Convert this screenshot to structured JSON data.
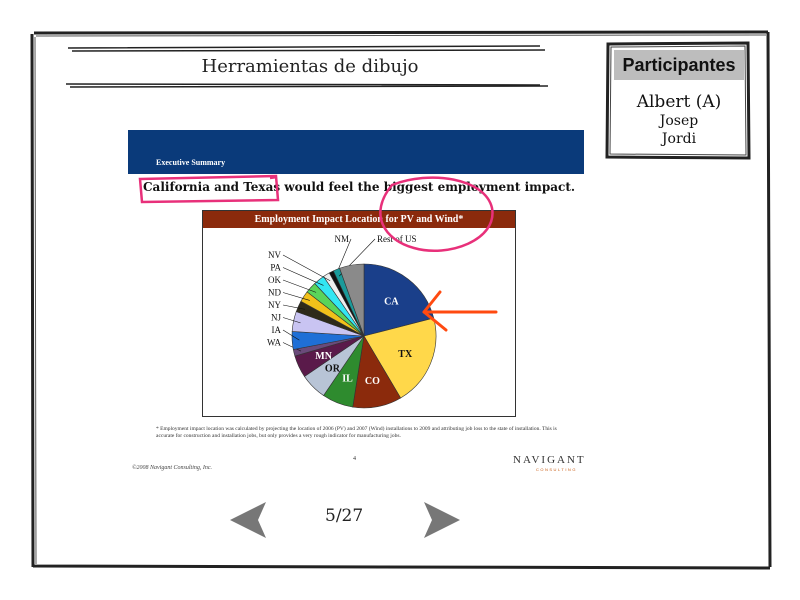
{
  "window": {
    "title": "Herramientas de dibujo"
  },
  "participants": {
    "header": "Participantes",
    "names": [
      "Albert (A)",
      "Josep",
      "Jordi"
    ]
  },
  "slide": {
    "section_label": "Executive Summary",
    "headline": "California and Texas would feel the biggest employment impact.",
    "footnote": "* Employment impact location was calculated by projecting the location of 2006 (PV) and 2007 (Wind) installations to 2009 and attributing job loss to the state of installation. This is accurate for construction and installation jobs, but only provides a very rough indicator for manufacturing jobs.",
    "page_number": "4",
    "copyright": "©2008 Navigant Consulting, Inc.",
    "brand": "NAVIGANT",
    "brand_sub": "CONSULTING"
  },
  "chart_data": {
    "type": "pie",
    "title": "Employment Impact Location for PV and Wind*",
    "slices": [
      {
        "label": "CA",
        "value": 21.0,
        "color": "#1a3f8a"
      },
      {
        "label": "TX",
        "value": 20.5,
        "color": "#ffd84a"
      },
      {
        "label": "CO",
        "value": 11.0,
        "color": "#8b2a0c"
      },
      {
        "label": "IL",
        "value": 7.0,
        "color": "#2e8b2e"
      },
      {
        "label": "OR",
        "value": 6.0,
        "color": "#b8c4d6"
      },
      {
        "label": "MN",
        "value": 5.0,
        "color": "#5a1a4a"
      },
      {
        "label": "WA",
        "value": 1.5,
        "color": "#6a4a7a"
      },
      {
        "label": "IA",
        "value": 4.0,
        "color": "#1f6fd6"
      },
      {
        "label": "NJ",
        "value": 4.5,
        "color": "#c9c4f2"
      },
      {
        "label": "NY",
        "value": 2.5,
        "color": "#2e2a1a"
      },
      {
        "label": "ND",
        "value": 2.5,
        "color": "#f2c11a"
      },
      {
        "label": "OK",
        "value": 2.5,
        "color": "#5ad45a"
      },
      {
        "label": "PA",
        "value": 2.5,
        "color": "#33e6f2"
      },
      {
        "label": "NV",
        "value": 1.5,
        "color": "#eeeeee"
      },
      {
        "label": "NM",
        "value": 1.0,
        "color": "#111111"
      },
      {
        "label": "Rest of US",
        "value": 1.5,
        "color": "#1a9a9a"
      },
      {
        "label": "",
        "value": 5.5,
        "color": "#8a8a8a"
      }
    ],
    "inside_labels": [
      "CA",
      "TX",
      "CO",
      "IL",
      "OR",
      "MN"
    ],
    "outside_labels": [
      "NM",
      "Rest of US",
      "NV",
      "PA",
      "OK",
      "ND",
      "NY",
      "NJ",
      "IA",
      "WA"
    ]
  },
  "navigation": {
    "page_counter": "5/27"
  },
  "colors": {
    "banner": "#0a3a7a",
    "chart_title_bg": "#8b2a0c",
    "annotation_pink": "#e8307a",
    "annotation_orange": "#ff4a10"
  }
}
